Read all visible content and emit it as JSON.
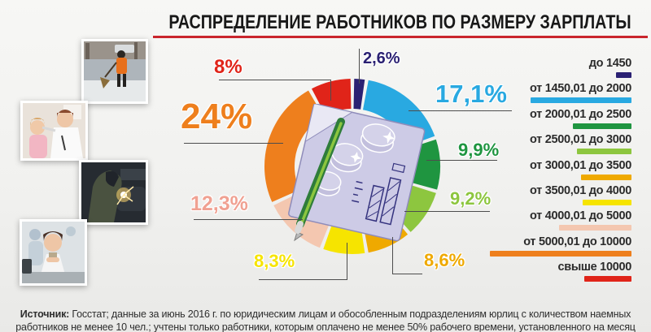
{
  "title": "РАСПРЕДЕЛЕНИЕ РАБОТНИКОВ ПО РАЗМЕРУ ЗАРПЛАТЫ",
  "accent_colors": {
    "title_underline": "#c9252c",
    "connector_line": "#4d4d4d",
    "background": "#f1f1ef"
  },
  "photos": [
    {
      "name": "street-sweeper"
    },
    {
      "name": "doctor-with-child"
    },
    {
      "name": "welder"
    },
    {
      "name": "office-worker"
    }
  ],
  "chart_data": {
    "type": "donut",
    "title": "РАСПРЕДЕЛЕНИЕ РАБОТНИКОВ ПО РАЗМЕРУ ЗАРПЛАТЫ",
    "unit": "%",
    "legend_position": "right",
    "start_angle_deg": 0,
    "direction": "clockwise",
    "slices": [
      {
        "range": "до 1450",
        "value": 2.6,
        "label": "2,6%",
        "color": "#2b2173"
      },
      {
        "range": "от 1450,01 до 2000",
        "value": 17.1,
        "label": "17,1%",
        "color": "#29a9e1"
      },
      {
        "range": "от 2000,01 до 2500",
        "value": 9.9,
        "label": "9,9%",
        "color": "#1f9540"
      },
      {
        "range": "от 2500,01 до 3000",
        "value": 9.2,
        "label": "9,2%",
        "color": "#8dc63f"
      },
      {
        "range": "от 3000,01 до 3500",
        "value": 8.6,
        "label": "8,6%",
        "color": "#efa900"
      },
      {
        "range": "от 3500,01 до 4000",
        "value": 8.3,
        "label": "8,3%",
        "color": "#f6e400"
      },
      {
        "range": "от 4000,01 до 5000",
        "value": 12.3,
        "label": "12,3%",
        "color": "#f4c7b0",
        "label_color": "#f0a192"
      },
      {
        "range": "от 5000,01 до 10000",
        "value": 24,
        "label": "24%",
        "color": "#ee7f1d"
      },
      {
        "range": "свыше 10000",
        "value": 8,
        "label": "8%",
        "color": "#e02419"
      }
    ]
  },
  "footer": {
    "prefix": "Источник:",
    "text": "Госстат; данные за июнь 2016 г. по юридическим лицам и обособленным подразделениям юрлиц с количеством наемных работников не менее 10 чел.; учтены только работники, которым оплачено не менее 50% рабочего времени, установленного на месяц"
  }
}
